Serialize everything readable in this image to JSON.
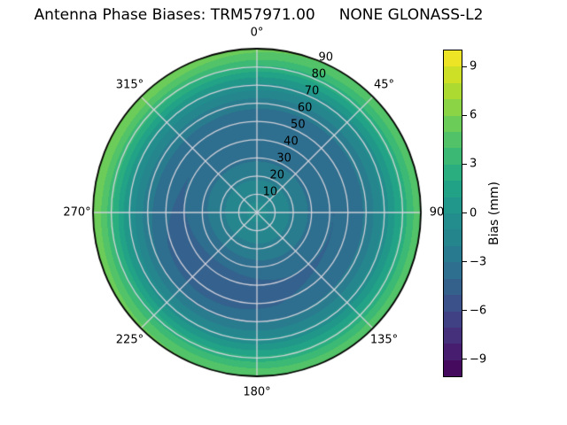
{
  "chart_data": {
    "type": "heatmap",
    "subtype": "polar_contour",
    "title": "Antenna Phase Biases: TRM57971.00     NONE GLONASS-L2",
    "theta_zero_location": "top",
    "theta_direction": "clockwise",
    "theta_ticks": [
      {
        "angle_deg": 0,
        "label": "0°"
      },
      {
        "angle_deg": 45,
        "label": "45°"
      },
      {
        "angle_deg": 90,
        "label": "90"
      },
      {
        "angle_deg": 135,
        "label": "135°"
      },
      {
        "angle_deg": 180,
        "label": "180°"
      },
      {
        "angle_deg": 225,
        "label": "225°"
      },
      {
        "angle_deg": 270,
        "label": "270°"
      },
      {
        "angle_deg": 315,
        "label": "315°"
      }
    ],
    "r_ticks": [
      {
        "r": 10,
        "label": "10"
      },
      {
        "r": 20,
        "label": "20"
      },
      {
        "r": 30,
        "label": "30"
      },
      {
        "r": 40,
        "label": "40"
      },
      {
        "r": 50,
        "label": "50"
      },
      {
        "r": 60,
        "label": "60"
      },
      {
        "r": 70,
        "label": "70"
      },
      {
        "r": 80,
        "label": "80"
      },
      {
        "r": 90,
        "label": "90"
      }
    ],
    "r_max": 90,
    "r_label_azimuth_deg": 22.5,
    "grid": {
      "on": true,
      "color": "rgba(216,213,221,0.95)",
      "ring_step": 10,
      "spoke_step_deg": 45,
      "outline_color": "#000000"
    },
    "levels": {
      "min": -10,
      "max": 10,
      "step": 1
    },
    "colormap": {
      "name": "viridis",
      "stops": [
        [
          0.0,
          "#440154"
        ],
        [
          0.1,
          "#482878"
        ],
        [
          0.2,
          "#3e4a89"
        ],
        [
          0.3,
          "#31688e"
        ],
        [
          0.4,
          "#26828e"
        ],
        [
          0.5,
          "#21918c"
        ],
        [
          0.6,
          "#22a884"
        ],
        [
          0.7,
          "#44be70"
        ],
        [
          0.8,
          "#7ad151"
        ],
        [
          0.9,
          "#bdde26"
        ],
        [
          1.0,
          "#fde725"
        ]
      ]
    },
    "colorbar": {
      "position": "right",
      "label": "Bias (mm)",
      "tick_values": [
        9,
        6,
        3,
        0,
        -3,
        -6,
        -9
      ],
      "tick_labels": [
        "9",
        "6",
        "3",
        "0",
        "−3",
        "−6",
        "−9"
      ]
    },
    "bias_profile_mm": [
      [
        0,
        -0.6
      ],
      [
        10,
        -1.3
      ],
      [
        20,
        -2.2
      ],
      [
        30,
        -3.2
      ],
      [
        42,
        -4.0
      ],
      [
        52,
        -3.7
      ],
      [
        60,
        -2.8
      ],
      [
        66,
        -1.6
      ],
      [
        70,
        -0.6
      ],
      [
        74,
        0.5
      ],
      [
        78,
        1.7
      ],
      [
        82,
        2.9
      ],
      [
        86,
        4.0
      ],
      [
        90,
        4.8
      ]
    ],
    "angular_anomalies": [
      {
        "azimuth_deg": 215,
        "r_center": 47,
        "r_sigma": 22,
        "theta_sigma_deg": 55,
        "amplitude_mm": -0.7
      },
      {
        "azimuth_deg": 295,
        "r_center": 90,
        "r_sigma": 28,
        "theta_sigma_deg": 75,
        "amplitude_mm": 1.3
      }
    ]
  }
}
